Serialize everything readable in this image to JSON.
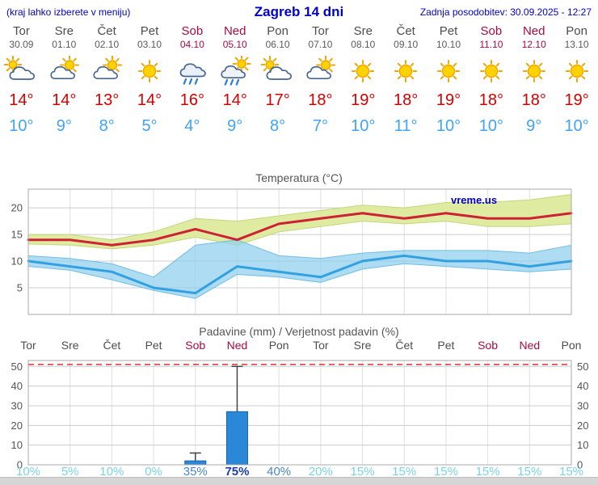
{
  "header": {
    "hint": "(kraj lahko izberete v meniju)",
    "title": "Zagreb 14 dni",
    "updated": "Zadnja posodobitev: 30.09.2025 - 12:27"
  },
  "colors": {
    "header_blue": "#0000cc",
    "day_label": "#4d4d4d",
    "weekend": "#a80b3f",
    "high_red": "#d40000",
    "low_blue": "#3fa3f7",
    "grid": "#cccccc",
    "grid_light": "#e0e0e0",
    "border": "#aaaaaa",
    "whisker": "#444444",
    "bar_fill": "#2b87d8",
    "bar_stroke": "#1b62a8",
    "prob_low": "#7cd1e8",
    "prob_mid": "#4a85c8",
    "prob_high": "#1c3fa8"
  },
  "forecast": {
    "days": [
      {
        "name": "Tor",
        "date": "30.09",
        "weekend": false,
        "icon": "mostly-cloudy",
        "high": "14°",
        "low": "10°"
      },
      {
        "name": "Sre",
        "date": "01.10",
        "weekend": false,
        "icon": "partly-cloudy",
        "high": "14°",
        "low": "9°"
      },
      {
        "name": "Čet",
        "date": "02.10",
        "weekend": false,
        "icon": "partly-cloudy",
        "high": "13°",
        "low": "8°"
      },
      {
        "name": "Pet",
        "date": "03.10",
        "weekend": false,
        "icon": "sunny",
        "high": "14°",
        "low": "5°"
      },
      {
        "name": "Sob",
        "date": "04.10",
        "weekend": true,
        "icon": "rain",
        "high": "16°",
        "low": "4°"
      },
      {
        "name": "Ned",
        "date": "05.10",
        "weekend": true,
        "icon": "rain-sun",
        "high": "14°",
        "low": "9°"
      },
      {
        "name": "Pon",
        "date": "06.10",
        "weekend": false,
        "icon": "mostly-cloudy",
        "high": "17°",
        "low": "8°"
      },
      {
        "name": "Tor",
        "date": "07.10",
        "weekend": false,
        "icon": "partly-cloudy",
        "high": "18°",
        "low": "7°"
      },
      {
        "name": "Sre",
        "date": "08.10",
        "weekend": false,
        "icon": "sunny",
        "high": "19°",
        "low": "10°"
      },
      {
        "name": "Čet",
        "date": "09.10",
        "weekend": false,
        "icon": "sunny",
        "high": "18°",
        "low": "11°"
      },
      {
        "name": "Pet",
        "date": "10.10",
        "weekend": false,
        "icon": "sunny",
        "high": "19°",
        "low": "10°"
      },
      {
        "name": "Sob",
        "date": "11.10",
        "weekend": true,
        "icon": "sunny",
        "high": "18°",
        "low": "10°"
      },
      {
        "name": "Ned",
        "date": "12.10",
        "weekend": true,
        "icon": "sunny",
        "high": "18°",
        "low": "9°"
      },
      {
        "name": "Pon",
        "date": "13.10",
        "weekend": false,
        "icon": "sunny",
        "high": "19°",
        "low": "10°"
      }
    ]
  },
  "chart_data": [
    {
      "type": "line",
      "title": "Temperatura (°C)",
      "watermark": "vreme.us",
      "categories": [
        "Tor",
        "Sre",
        "Čet",
        "Pet",
        "Sob",
        "Ned",
        "Pon",
        "Tor",
        "Sre",
        "Čet",
        "Pet",
        "Sob",
        "Ned",
        "Pon"
      ],
      "ylim": [
        0,
        23.5
      ],
      "yticks": [
        5,
        10,
        15,
        20
      ],
      "series": [
        {
          "name": "temp-max",
          "color": "#cc2233",
          "values": [
            14,
            14,
            13,
            14,
            16,
            14,
            17,
            18,
            19,
            18,
            19,
            18,
            18,
            19
          ]
        },
        {
          "name": "temp-min",
          "color": "#33a0e0",
          "values": [
            10,
            9,
            8,
            5,
            4,
            9,
            8,
            7,
            10,
            11,
            10,
            10,
            9,
            10
          ]
        }
      ],
      "bands": [
        {
          "name": "temp-max-range-band",
          "color": "#dcea9c",
          "edge": "#c2d87a",
          "opacity": 0.95,
          "upper": [
            15,
            15,
            14,
            15.5,
            18,
            17.5,
            18.5,
            19.5,
            20.5,
            20,
            21,
            21,
            21.5,
            22.5
          ],
          "lower": [
            13.2,
            13,
            12.3,
            13,
            14.5,
            13,
            15.5,
            16.5,
            17.5,
            17,
            17.5,
            16.5,
            16.5,
            17
          ]
        },
        {
          "name": "temp-min-range-band",
          "color": "#8fd0ee",
          "edge": "#6fbde4",
          "opacity": 0.72,
          "upper": [
            11,
            10.5,
            9.5,
            7,
            13,
            14,
            11,
            10.5,
            11.5,
            12,
            12,
            12,
            11.5,
            13
          ],
          "lower": [
            9,
            8.3,
            6.5,
            4.5,
            3,
            7.5,
            7,
            6,
            8.5,
            9.5,
            9,
            8.5,
            8,
            8.5
          ]
        }
      ]
    },
    {
      "type": "bar",
      "title": "Padavine (mm) / Verjetnost padavin (%)",
      "categories": [
        "Tor",
        "Sre",
        "Čet",
        "Pet",
        "Sob",
        "Ned",
        "Pon",
        "Tor",
        "Sre",
        "Čet",
        "Pet",
        "Sob",
        "Ned",
        "Pon"
      ],
      "weekend": [
        false,
        false,
        false,
        false,
        true,
        true,
        false,
        false,
        false,
        false,
        false,
        true,
        true,
        false
      ],
      "ylim": [
        0,
        53
      ],
      "yticks": [
        0,
        10,
        20,
        30,
        40,
        50
      ],
      "values_mm": [
        0,
        0,
        0,
        0,
        2,
        27,
        0,
        0,
        0,
        0,
        0,
        0,
        0,
        0
      ],
      "whisker_max": [
        0,
        0,
        0,
        0,
        6,
        50,
        0,
        0,
        0,
        0,
        0,
        0,
        0,
        0
      ],
      "probabilities_pct": [
        10,
        5,
        10,
        0,
        35,
        75,
        40,
        20,
        15,
        15,
        15,
        15,
        15,
        15
      ],
      "threshold_line": {
        "value": 51,
        "color": "#e03030",
        "style": "dashed"
      }
    }
  ]
}
